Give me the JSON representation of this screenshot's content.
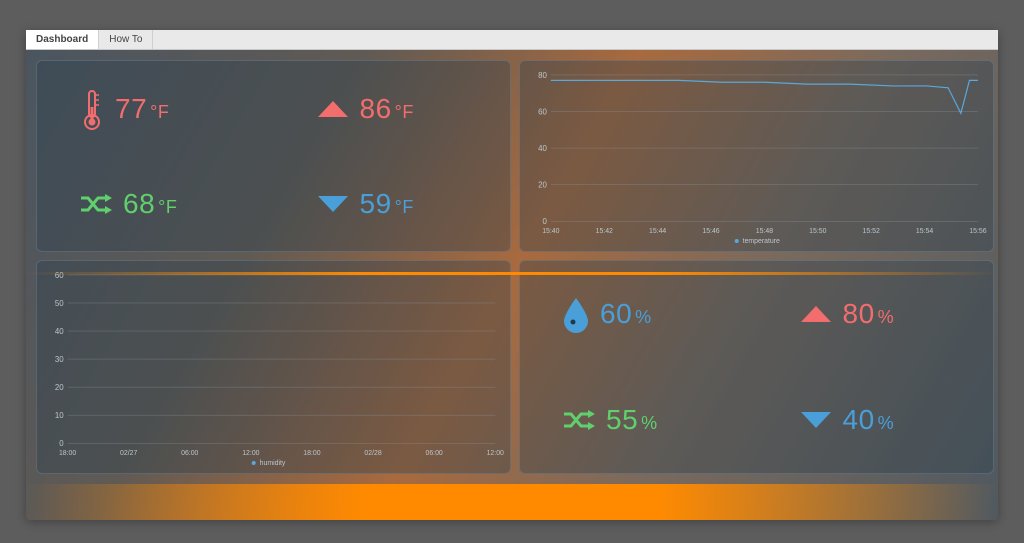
{
  "tabs": [
    {
      "label": "Dashboard",
      "active": true
    },
    {
      "label": "How To",
      "active": false
    }
  ],
  "colors": {
    "red": "#f26d6d",
    "green": "#5fd06c",
    "blue": "#4a9fd8",
    "grid": "#8d99a2",
    "tick_text": "#bcc6cc"
  },
  "temp_stats": {
    "current": {
      "value": 77,
      "unit": "°F",
      "icon": "thermometer",
      "color": "red"
    },
    "high": {
      "value": 86,
      "unit": "°F",
      "icon": "triangle-up",
      "color": "red"
    },
    "avg": {
      "value": 68,
      "unit": "°F",
      "icon": "shuffle",
      "color": "green"
    },
    "low": {
      "value": 59,
      "unit": "°F",
      "icon": "triangle-down",
      "color": "blue"
    }
  },
  "humid_stats": {
    "current": {
      "value": 60,
      "unit": "%",
      "icon": "droplet",
      "color": "blue"
    },
    "high": {
      "value": 80,
      "unit": "%",
      "icon": "triangle-up",
      "color": "red"
    },
    "avg": {
      "value": 55,
      "unit": "%",
      "icon": "shuffle",
      "color": "green"
    },
    "low": {
      "value": 40,
      "unit": "%",
      "icon": "triangle-down",
      "color": "blue"
    }
  },
  "temp_chart": {
    "legend": "temperature",
    "ylim": [
      0,
      80
    ],
    "ytick_step": 20,
    "x_labels": [
      "15:40",
      "15:42",
      "15:44",
      "15:46",
      "15:48",
      "15:50",
      "15:52",
      "15:54",
      "15:56"
    ],
    "points": [
      [
        0.0,
        77
      ],
      [
        0.1,
        77
      ],
      [
        0.2,
        77
      ],
      [
        0.3,
        77
      ],
      [
        0.4,
        76
      ],
      [
        0.5,
        76
      ],
      [
        0.6,
        75
      ],
      [
        0.7,
        75
      ],
      [
        0.8,
        74
      ],
      [
        0.88,
        74
      ],
      [
        0.93,
        73
      ],
      [
        0.96,
        59
      ],
      [
        0.98,
        77
      ],
      [
        1.0,
        77
      ]
    ],
    "line_color": "#5aa8dc"
  },
  "humid_chart": {
    "legend": "humidity",
    "ylim": [
      0,
      60
    ],
    "ytick_step": 10,
    "x_labels": [
      "18:00",
      "02/27",
      "06:00",
      "12:00",
      "18:00",
      "02/28",
      "06:00",
      "12:00"
    ],
    "points": [],
    "line_color": "#5aa8dc"
  }
}
